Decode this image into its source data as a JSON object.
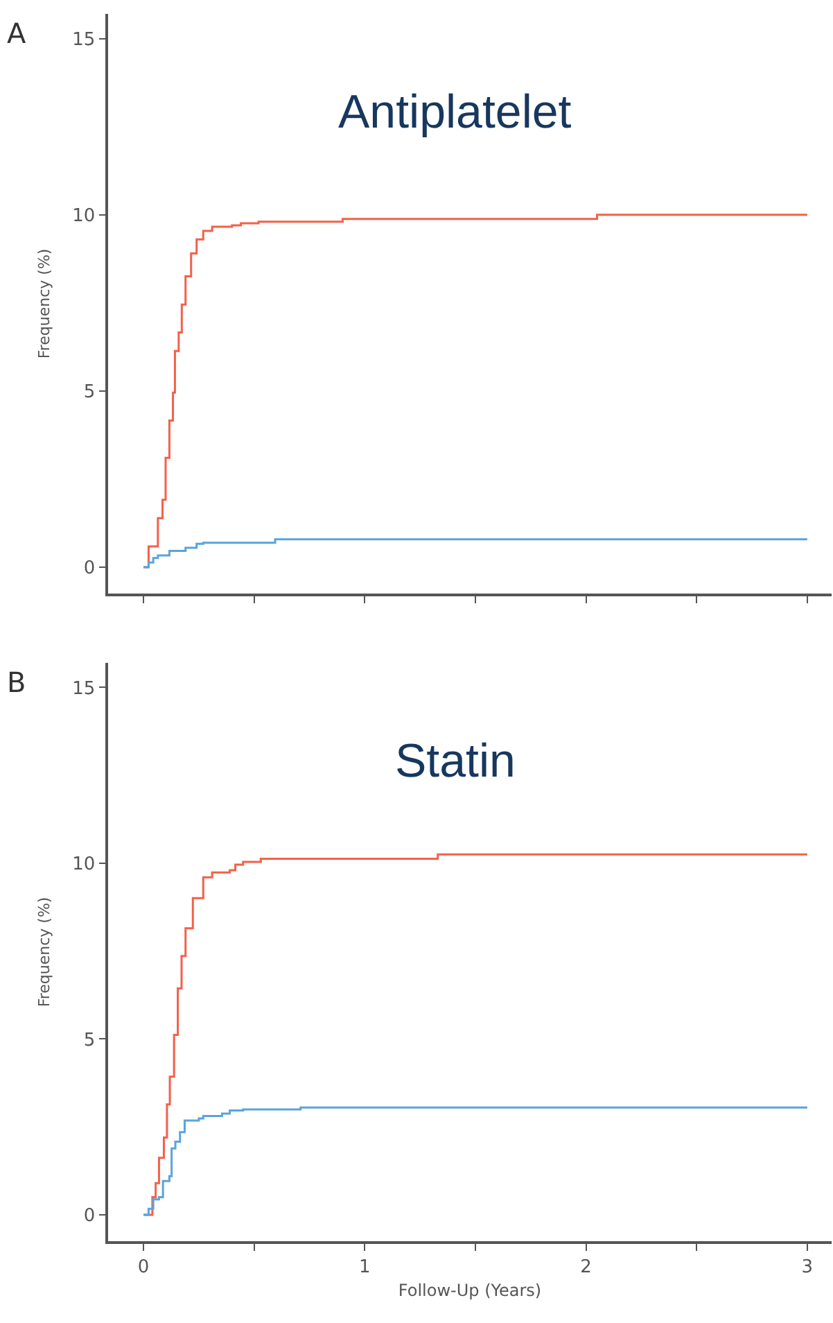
{
  "chart_data": [
    {
      "type": "step",
      "title": "A",
      "subtitle": "Antiplatelet",
      "ylabel": "Frequency (%)",
      "xlim": [
        -0.16,
        3.11
      ],
      "xticks": [
        0,
        {
          "value": 0.5,
          "label": null
        },
        1,
        {
          "value": 1.5,
          "label": null
        },
        2,
        {
          "value": 2.5,
          "label": null
        },
        3
      ],
      "ylim": [
        -0.75,
        15.7
      ],
      "yticks": [
        0,
        5,
        10,
        15
      ],
      "tick_labels": "y",
      "series": [
        {
          "color": "#f4604a",
          "x": [
            0,
            0.023,
            0.065,
            0.086,
            0.1,
            0.117,
            0.133,
            0.142,
            0.159,
            0.173,
            0.19,
            0.215,
            0.24,
            0.27,
            0.31,
            0.4,
            0.44,
            0.52,
            0.9,
            2.05,
            3
          ],
          "values": [
            0,
            0.59,
            1.39,
            1.91,
            3.1,
            4.16,
            4.95,
            6.13,
            6.66,
            7.45,
            8.25,
            8.9,
            9.3,
            9.54,
            9.66,
            9.7,
            9.76,
            9.8,
            9.88,
            10.0,
            10.0
          ]
        },
        {
          "color": "#5ba3dc",
          "x": [
            0,
            0.023,
            0.044,
            0.065,
            0.117,
            0.19,
            0.24,
            0.27,
            0.595,
            3
          ],
          "values": [
            0,
            0.13,
            0.26,
            0.33,
            0.46,
            0.55,
            0.66,
            0.69,
            0.79,
            0.79
          ]
        }
      ]
    },
    {
      "type": "step",
      "title": "B",
      "subtitle": "Statin",
      "xlabel": "Follow-Up (Years)",
      "ylabel": "Frequency (%)",
      "xlim": [
        -0.16,
        3.11
      ],
      "xticks": [
        0,
        {
          "value": 0.5,
          "label": null
        },
        1,
        {
          "value": 1.5,
          "label": null
        },
        2,
        {
          "value": 2.5,
          "label": null
        },
        3
      ],
      "ylim": [
        -0.75,
        15.7
      ],
      "yticks": [
        0,
        5,
        10,
        15
      ],
      "series": [
        {
          "color": "#f4604a",
          "x": [
            0,
            0.04,
            0.055,
            0.07,
            0.092,
            0.106,
            0.119,
            0.138,
            0.155,
            0.172,
            0.19,
            0.223,
            0.27,
            0.31,
            0.39,
            0.415,
            0.45,
            0.53,
            1.33,
            3
          ],
          "values": [
            0,
            0.5,
            0.9,
            1.62,
            2.2,
            3.14,
            3.93,
            5.12,
            6.44,
            7.36,
            8.15,
            9.01,
            9.6,
            9.74,
            9.8,
            9.96,
            10.04,
            10.13,
            10.25,
            10.25
          ]
        },
        {
          "color": "#5ba3dc",
          "x": [
            0,
            0.023,
            0.044,
            0.07,
            0.088,
            0.117,
            0.127,
            0.144,
            0.165,
            0.186,
            0.25,
            0.27,
            0.355,
            0.39,
            0.45,
            0.71,
            3
          ],
          "values": [
            0,
            0.17,
            0.44,
            0.5,
            0.96,
            1.1,
            1.89,
            2.08,
            2.35,
            2.68,
            2.74,
            2.81,
            2.88,
            2.97,
            3.0,
            3.05,
            3.05
          ]
        }
      ]
    }
  ]
}
